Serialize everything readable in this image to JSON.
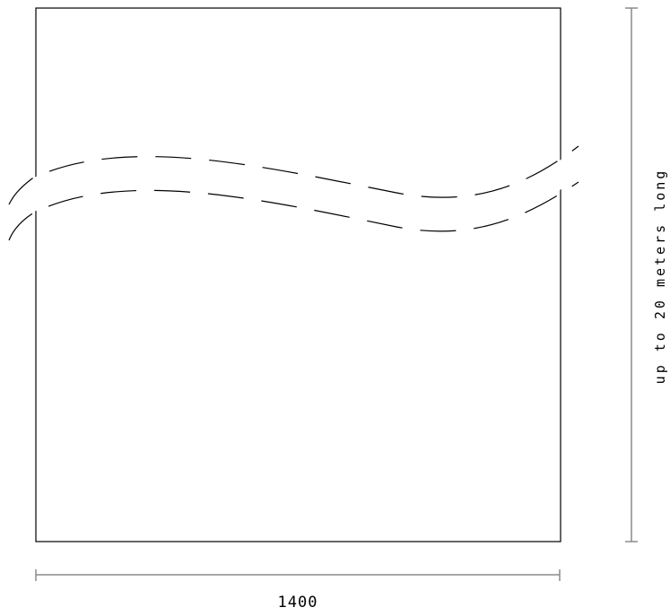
{
  "diagram": {
    "width_label": "1400",
    "length_label": "up to 20 meters long",
    "colors": {
      "outline": "#000000",
      "dimension_line": "#8a8a8a",
      "background": "#ffffff"
    }
  }
}
